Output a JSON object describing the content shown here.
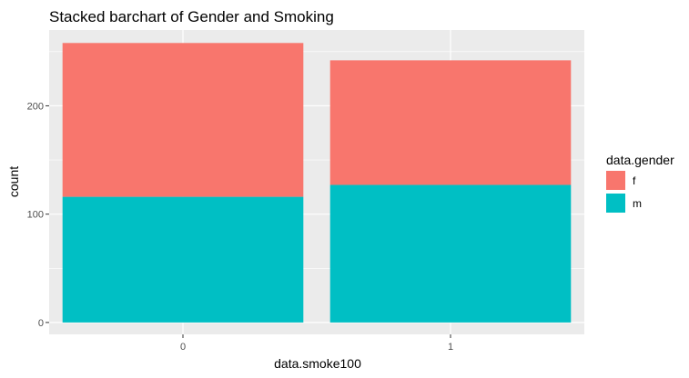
{
  "chart_data": {
    "type": "bar",
    "stacked": true,
    "title": "Stacked barchart of Gender and Smoking",
    "xlabel": "data.smoke100",
    "ylabel": "count",
    "categories": [
      "0",
      "1"
    ],
    "series": [
      {
        "name": "m",
        "values": [
          116,
          127
        ],
        "color": "#00BFC4"
      },
      {
        "name": "f",
        "values": [
          142,
          115
        ],
        "color": "#F8766D"
      }
    ],
    "ylim": [
      -11,
      270
    ],
    "yticks": [
      0,
      100,
      200
    ],
    "grid": true,
    "legend": {
      "title": "data.gender",
      "position": "right",
      "entries": [
        {
          "label": "f",
          "color": "#F8766D"
        },
        {
          "label": "m",
          "color": "#00BFC4"
        }
      ]
    },
    "panel_background": "#EBEBEB",
    "grid_color": "#FFFFFF"
  }
}
